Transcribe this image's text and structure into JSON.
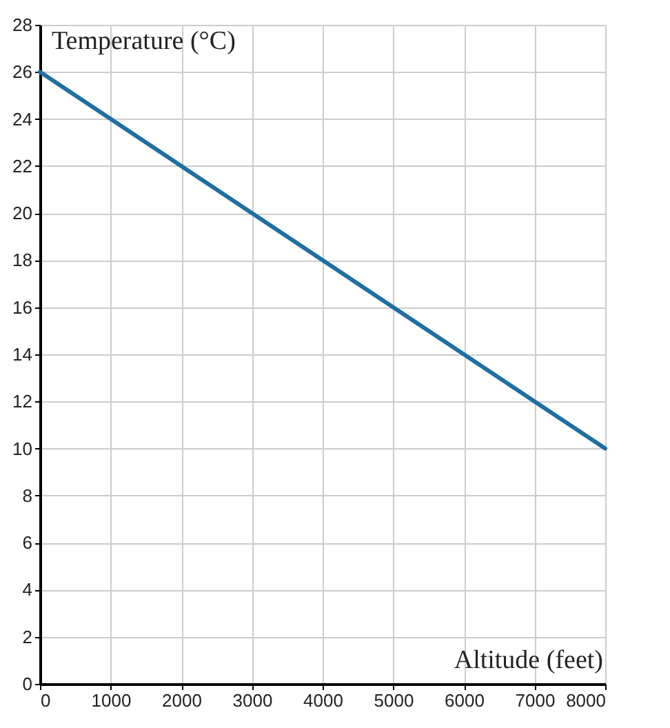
{
  "chart_data": {
    "type": "line",
    "xlabel": "Altitude (feet)",
    "ylabel": "Temperature (°C)",
    "x": [
      0,
      8000
    ],
    "series": [
      {
        "color": "#1f6f9f",
        "values": [
          26,
          10
        ]
      }
    ],
    "xlim": [
      0,
      8000
    ],
    "xticks": [
      0,
      1000,
      2000,
      3000,
      4000,
      5000,
      6000,
      7000,
      8000
    ],
    "ylim": [
      0,
      28
    ],
    "yticks": [
      0,
      2,
      4,
      6,
      8,
      10,
      12,
      14,
      16,
      18,
      20,
      22,
      24,
      26,
      28
    ],
    "grid": true,
    "marker": "none",
    "line_style": "solid"
  }
}
